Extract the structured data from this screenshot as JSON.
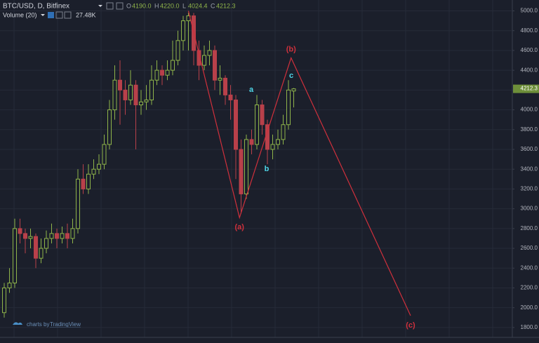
{
  "chart_data": {
    "type": "candlestick",
    "title": "BTC/USD, D, Bitfinex",
    "legend": {
      "labels": [
        "O",
        "H",
        "L",
        "C"
      ],
      "values": [
        "4190.0",
        "4220.0",
        "4024.4",
        "4212.3"
      ]
    },
    "indicator": "Volume (20)",
    "indicator_value": "27.48K",
    "open": [
      1950,
      2200,
      2250,
      2800,
      2750,
      2700,
      2720,
      2500,
      2600,
      2700,
      2750,
      2700,
      2750,
      2700,
      2800,
      3300,
      3200,
      3350,
      3400,
      3450,
      3650,
      4000,
      4300,
      4200,
      4100,
      4250,
      4050,
      4080,
      4100,
      4300,
      4400,
      4350,
      4400,
      4500,
      4700,
      4900,
      4950,
      4600,
      4450,
      4550,
      4600,
      4300,
      4320,
      4150,
      4100,
      3600,
      3150,
      3700,
      3650,
      4050,
      3850,
      3600,
      3650,
      3700,
      3850,
      4190
    ],
    "high": [
      2250,
      2400,
      2900,
      2900,
      2800,
      2800,
      2750,
      2700,
      2780,
      2850,
      2800,
      2820,
      2850,
      2900,
      3400,
      3450,
      3450,
      3500,
      3550,
      3750,
      4100,
      4450,
      4500,
      4300,
      4400,
      4300,
      4200,
      4250,
      4450,
      4500,
      4450,
      4500,
      4700,
      4800,
      4950,
      4980,
      4980,
      4700,
      4650,
      4700,
      4650,
      4450,
      4350,
      4250,
      4150,
      3700,
      3750,
      3800,
      4150,
      4100,
      3900,
      3750,
      3800,
      3950,
      4300,
      4220
    ],
    "low": [
      1900,
      2150,
      2200,
      2650,
      2550,
      2600,
      2400,
      2450,
      2550,
      2650,
      2600,
      2650,
      2600,
      2650,
      2750,
      3150,
      3150,
      3300,
      3350,
      3400,
      3600,
      3900,
      3850,
      3950,
      4050,
      3600,
      3950,
      4000,
      4050,
      4250,
      4250,
      4300,
      4350,
      4450,
      4600,
      4600,
      4450,
      4300,
      4400,
      4450,
      4200,
      4150,
      4050,
      3900,
      3300,
      2950,
      3100,
      3550,
      3600,
      3750,
      3450,
      3500,
      3600,
      3650,
      3800,
      4024.4
    ],
    "close": [
      2200,
      2250,
      2800,
      2750,
      2700,
      2720,
      2500,
      2600,
      2700,
      2750,
      2700,
      2750,
      2700,
      2800,
      3300,
      3200,
      3350,
      3400,
      3450,
      3650,
      4000,
      4300,
      4200,
      4100,
      4250,
      4050,
      4080,
      4100,
      4300,
      4400,
      4350,
      4400,
      4500,
      4700,
      4900,
      4950,
      4600,
      4450,
      4550,
      4600,
      4300,
      4320,
      4150,
      4100,
      3600,
      3150,
      3700,
      3650,
      4050,
      3850,
      3600,
      3650,
      3700,
      3850,
      4200,
      4212.3
    ],
    "up_color": "#8fb44a",
    "down_color": "#b8404a",
    "ylim": [
      1700,
      5110
    ],
    "yticks": [
      {
        "value": 1800,
        "label": "1800.0"
      },
      {
        "value": 2000,
        "label": "2000.0"
      },
      {
        "value": 2200,
        "label": "2200.0"
      },
      {
        "value": 2400,
        "label": "2400.0"
      },
      {
        "value": 2600,
        "label": "2600.0"
      },
      {
        "value": 2800,
        "label": "2800.0"
      },
      {
        "value": 3000,
        "label": "3000.0"
      },
      {
        "value": 3200,
        "label": "3200.0"
      },
      {
        "value": 3400,
        "label": "3400.0"
      },
      {
        "value": 3600,
        "label": "3600.0"
      },
      {
        "value": 3800,
        "label": "3800.0"
      },
      {
        "value": 4000,
        "label": "4000.0"
      },
      {
        "value": 4200,
        "label": "4200.0"
      },
      {
        "value": 4400,
        "label": "4400.0"
      },
      {
        "value": 4600,
        "label": "4600.0"
      },
      {
        "value": 4800,
        "label": "4800.0"
      },
      {
        "value": 5000,
        "label": "5000.0"
      }
    ],
    "grid": true,
    "wave": {
      "x": [
        35,
        44.7,
        54.5,
        77.2
      ],
      "y": [
        5000,
        2910,
        4525,
        1920
      ],
      "color": "#d0303c",
      "labels": [
        "(a)",
        "(b)",
        "(c)"
      ]
    },
    "subwave_labels": [
      "a",
      "b",
      "c"
    ],
    "subwave_color": "#4fd6e8"
  },
  "footer": {
    "prefix": "charts by",
    "brand": "TradingView"
  }
}
